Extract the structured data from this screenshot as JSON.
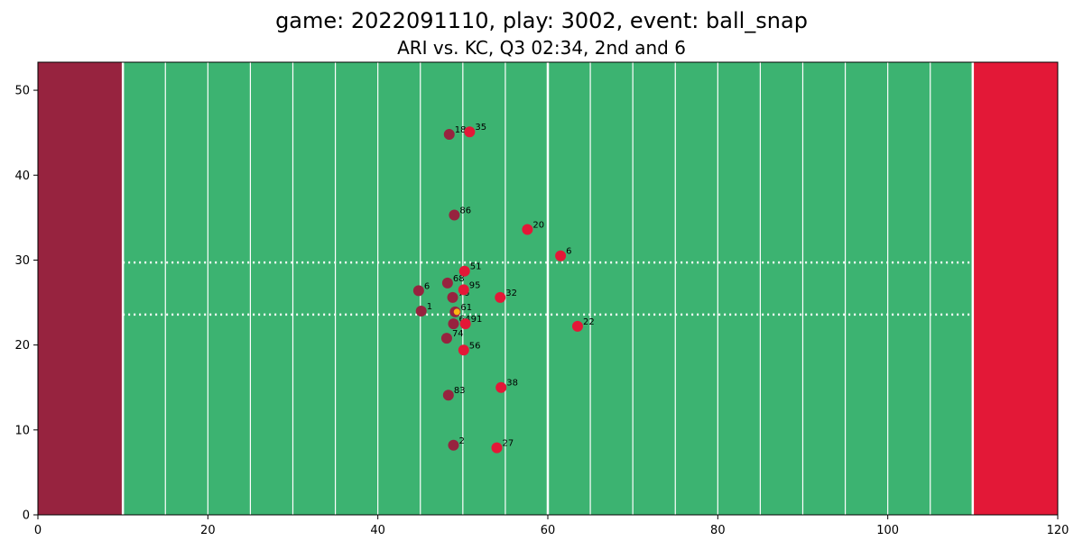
{
  "chart_data": {
    "type": "scatter",
    "title": "game: 2022091110, play: 3002, event: ball_snap",
    "subtitle": "ARI vs. KC, Q3 02:34, 2nd and 6",
    "xlabel": "",
    "ylabel": "",
    "xlim": [
      0,
      120
    ],
    "ylim": [
      0,
      53.3
    ],
    "x_ticks": [
      0,
      20,
      40,
      60,
      80,
      100,
      120
    ],
    "y_ticks": [
      0,
      10,
      20,
      30,
      40,
      50
    ],
    "grid": false,
    "colors": {
      "field": "#3cb371",
      "endzone_left": "#97233f",
      "endzone_right": "#e31837",
      "team_ari": "#97233f",
      "team_kc": "#e31837",
      "football": "#ffb612",
      "lines": "#ffffff"
    },
    "field": {
      "endzones": [
        {
          "x_start": 0,
          "x_end": 10,
          "color_key": "endzone_left"
        },
        {
          "x_start": 110,
          "x_end": 120,
          "color_key": "endzone_right"
        }
      ],
      "goal_lines": [
        10,
        110
      ],
      "yard_lines": [
        15,
        20,
        25,
        30,
        35,
        40,
        45,
        50,
        55,
        60,
        65,
        70,
        75,
        80,
        85,
        90,
        95,
        100,
        105
      ],
      "midfield": 60,
      "hash_marks_y": [
        23.58,
        29.72
      ]
    },
    "series": [
      {
        "color_key": "team_ari",
        "points": [
          {
            "x": 48.4,
            "y": 44.8,
            "label": "18"
          },
          {
            "x": 49.0,
            "y": 35.3,
            "label": "86"
          },
          {
            "x": 48.2,
            "y": 27.3,
            "label": "68"
          },
          {
            "x": 44.8,
            "y": 26.4,
            "label": "6"
          },
          {
            "x": 48.8,
            "y": 25.6,
            "label": "76"
          },
          {
            "x": 45.1,
            "y": 24.0,
            "label": "1"
          },
          {
            "x": 49.1,
            "y": 23.9,
            "label": "61"
          },
          {
            "x": 48.9,
            "y": 22.5,
            "label": "64"
          },
          {
            "x": 48.1,
            "y": 20.8,
            "label": "74"
          },
          {
            "x": 48.3,
            "y": 14.1,
            "label": "83"
          },
          {
            "x": 48.9,
            "y": 8.2,
            "label": "2"
          }
        ]
      },
      {
        "color_key": "team_kc",
        "points": [
          {
            "x": 50.8,
            "y": 45.1,
            "label": "35"
          },
          {
            "x": 57.6,
            "y": 33.6,
            "label": "20"
          },
          {
            "x": 61.5,
            "y": 30.5,
            "label": "6"
          },
          {
            "x": 50.2,
            "y": 28.7,
            "label": "51"
          },
          {
            "x": 50.1,
            "y": 26.5,
            "label": "95"
          },
          {
            "x": 54.4,
            "y": 25.6,
            "label": "32"
          },
          {
            "x": 50.3,
            "y": 22.5,
            "label": "91"
          },
          {
            "x": 63.5,
            "y": 22.2,
            "label": "22"
          },
          {
            "x": 50.1,
            "y": 19.4,
            "label": "56"
          },
          {
            "x": 54.5,
            "y": 15.0,
            "label": "38"
          },
          {
            "x": 54.0,
            "y": 7.9,
            "label": "27"
          }
        ]
      }
    ],
    "football": {
      "x": 49.3,
      "y": 23.9,
      "color_key": "football"
    }
  }
}
